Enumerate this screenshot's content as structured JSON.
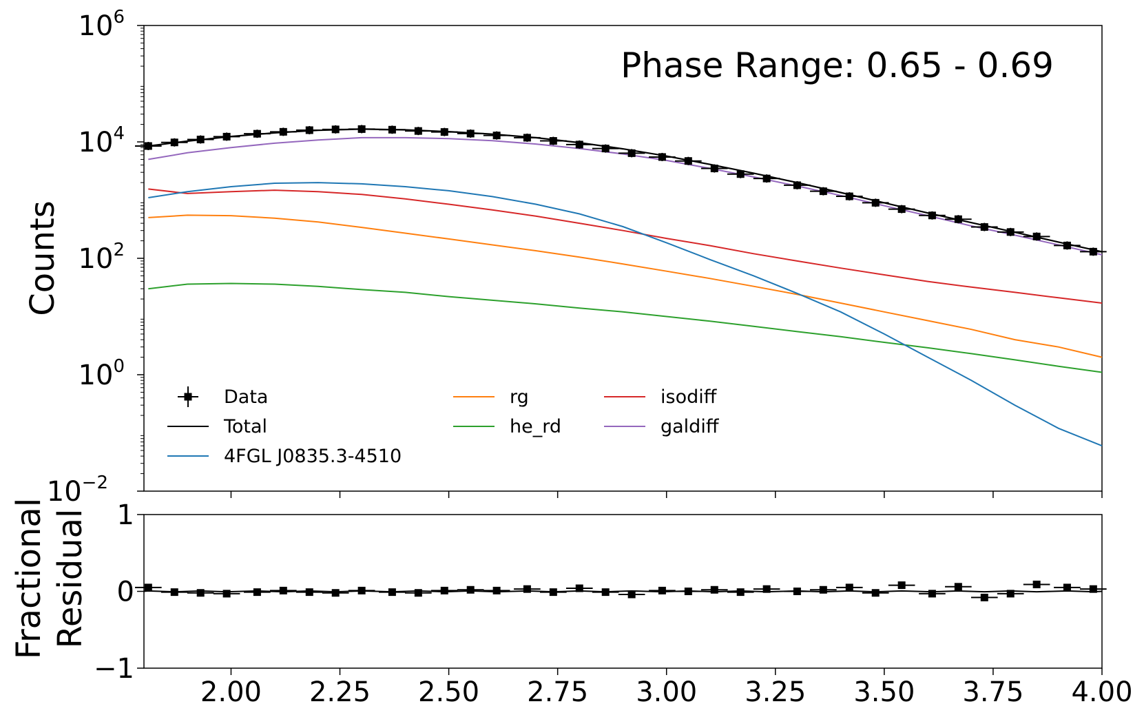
{
  "chart_data": [
    {
      "type": "line",
      "panel": "top",
      "title": "",
      "annotation": "Phase Range: 0.65 - 0.69",
      "xlabel": "",
      "ylabel": "Counts",
      "yscale": "log",
      "xlim": [
        1.8,
        4.0
      ],
      "ylim": [
        0.01,
        1000000
      ],
      "yticks": [
        {
          "base": "10",
          "exp": "6",
          "value": 1000000
        },
        {
          "base": "10",
          "exp": "4",
          "value": 10000
        },
        {
          "base": "10",
          "exp": "2",
          "value": 100
        },
        {
          "base": "10",
          "exp": "0",
          "value": 1
        },
        {
          "base": "10",
          "exp": "−2",
          "value": 0.01
        }
      ],
      "legend_position": "lower-left",
      "series": [
        {
          "name": "Data",
          "key": "data",
          "color": "#000000",
          "kind": "errorbar",
          "x": [
            1.81,
            1.87,
            1.93,
            1.99,
            2.06,
            2.12,
            2.18,
            2.24,
            2.3,
            2.37,
            2.43,
            2.49,
            2.55,
            2.61,
            2.68,
            2.74,
            2.8,
            2.86,
            2.92,
            2.99,
            3.05,
            3.11,
            3.17,
            3.23,
            3.3,
            3.36,
            3.42,
            3.48,
            3.54,
            3.61,
            3.67,
            3.73,
            3.79,
            3.85,
            3.92,
            3.98
          ],
          "y": [
            8500,
            9800,
            11000,
            12300,
            13800,
            14900,
            15900,
            16400,
            16600,
            16200,
            15400,
            14800,
            13900,
            12900,
            11800,
            10400,
            9000,
            7700,
            6400,
            5500,
            4700,
            3500,
            2800,
            2350,
            1800,
            1420,
            1160,
            900,
            700,
            545,
            470,
            345,
            283,
            237,
            166,
            130
          ]
        },
        {
          "name": "Total",
          "key": "total",
          "color": "#000000",
          "x": [
            1.81,
            1.9,
            2.0,
            2.1,
            2.2,
            2.3,
            2.4,
            2.5,
            2.6,
            2.7,
            2.8,
            2.9,
            3.0,
            3.1,
            3.2,
            3.3,
            3.4,
            3.5,
            3.6,
            3.7,
            3.8,
            3.9,
            4.0
          ],
          "y": [
            8500,
            10300,
            12400,
            14300,
            15800,
            16600,
            16100,
            15000,
            13600,
            11800,
            9700,
            7600,
            5700,
            4100,
            2900,
            2000,
            1350,
            900,
            600,
            410,
            280,
            190,
            130
          ]
        },
        {
          "name": "4FGL J0835.3-4510",
          "key": "src",
          "color": "#1f77b4",
          "x": [
            1.81,
            1.9,
            2.0,
            2.1,
            2.2,
            2.3,
            2.4,
            2.5,
            2.6,
            2.7,
            2.8,
            2.9,
            3.0,
            3.1,
            3.2,
            3.3,
            3.4,
            3.5,
            3.6,
            3.7,
            3.8,
            3.9,
            4.0
          ],
          "y": [
            1100,
            1400,
            1700,
            1950,
            2000,
            1900,
            1700,
            1450,
            1150,
            850,
            580,
            350,
            185,
            95,
            50,
            25,
            12,
            5,
            2,
            0.8,
            0.3,
            0.12,
            0.06
          ]
        },
        {
          "name": "rg",
          "key": "rg",
          "color": "#ff7f0e",
          "x": [
            1.81,
            1.9,
            2.0,
            2.1,
            2.2,
            2.3,
            2.4,
            2.5,
            2.6,
            2.7,
            2.8,
            2.9,
            3.0,
            3.1,
            3.2,
            3.3,
            3.4,
            3.5,
            3.6,
            3.7,
            3.8,
            3.9,
            4.0
          ],
          "y": [
            500,
            550,
            540,
            490,
            420,
            340,
            270,
            215,
            170,
            135,
            105,
            80,
            60,
            45,
            33,
            24,
            17,
            12,
            8.5,
            6,
            4,
            3,
            2
          ]
        },
        {
          "name": "he_rd",
          "key": "he_rd",
          "color": "#2ca02c",
          "x": [
            1.81,
            1.9,
            2.0,
            2.1,
            2.2,
            2.3,
            2.4,
            2.5,
            2.6,
            2.7,
            2.8,
            2.9,
            3.0,
            3.1,
            3.2,
            3.3,
            3.4,
            3.5,
            3.6,
            3.7,
            3.8,
            3.9,
            4.0
          ],
          "y": [
            30,
            36,
            37,
            36,
            33,
            29,
            26,
            22,
            19,
            16.5,
            14,
            12,
            10,
            8.3,
            6.8,
            5.5,
            4.5,
            3.6,
            2.9,
            2.3,
            1.8,
            1.4,
            1.1
          ]
        },
        {
          "name": "isodiff",
          "key": "isodiff",
          "color": "#d62728",
          "x": [
            1.81,
            1.9,
            2.0,
            2.1,
            2.2,
            2.3,
            2.4,
            2.5,
            2.6,
            2.7,
            2.8,
            2.9,
            3.0,
            3.1,
            3.2,
            3.3,
            3.4,
            3.5,
            3.6,
            3.7,
            3.8,
            3.9,
            4.0
          ],
          "y": [
            1550,
            1300,
            1400,
            1480,
            1400,
            1250,
            1050,
            850,
            680,
            530,
            400,
            300,
            220,
            165,
            120,
            90,
            68,
            52,
            40,
            32,
            26,
            21,
            17
          ]
        },
        {
          "name": "galdiff",
          "key": "galdiff",
          "color": "#9467bd",
          "x": [
            1.81,
            1.9,
            2.0,
            2.1,
            2.2,
            2.3,
            2.4,
            2.5,
            2.6,
            2.7,
            2.8,
            2.9,
            3.0,
            3.1,
            3.2,
            3.3,
            3.4,
            3.5,
            3.6,
            3.7,
            3.8,
            3.9,
            4.0
          ],
          "y": [
            5000,
            6500,
            8000,
            9500,
            10800,
            11800,
            11800,
            11400,
            10500,
            9200,
            7700,
            6200,
            4800,
            3500,
            2500,
            1750,
            1200,
            800,
            540,
            360,
            250,
            170,
            115
          ]
        }
      ]
    },
    {
      "type": "scatter",
      "panel": "bottom",
      "xlabel": "",
      "ylabel": [
        "Fractional",
        "Residual"
      ],
      "xlim": [
        1.8,
        4.0
      ],
      "ylim": [
        -1,
        1
      ],
      "yticks": [
        "1",
        "0",
        "−1"
      ],
      "yticks_values": [
        1,
        0,
        -1
      ],
      "xticks": [
        "2.00",
        "2.25",
        "2.50",
        "2.75",
        "3.00",
        "3.25",
        "3.50",
        "3.75",
        "4.00"
      ],
      "xticks_values": [
        2.0,
        2.25,
        2.5,
        2.75,
        3.0,
        3.25,
        3.5,
        3.75,
        4.0
      ],
      "zero_line": 0,
      "series": [
        {
          "name": "Residual",
          "color": "#000000",
          "x": [
            1.81,
            1.87,
            1.93,
            1.99,
            2.06,
            2.12,
            2.18,
            2.24,
            2.3,
            2.37,
            2.43,
            2.49,
            2.55,
            2.61,
            2.68,
            2.74,
            2.8,
            2.86,
            2.92,
            2.99,
            3.05,
            3.11,
            3.17,
            3.23,
            3.3,
            3.36,
            3.42,
            3.48,
            3.54,
            3.61,
            3.67,
            3.73,
            3.79,
            3.85,
            3.92,
            3.98
          ],
          "y": [
            0.05,
            -0.01,
            -0.02,
            -0.03,
            -0.01,
            0.01,
            -0.01,
            -0.02,
            0.01,
            -0.01,
            -0.02,
            0.01,
            0.02,
            0.01,
            0.03,
            -0.01,
            0.04,
            -0.01,
            -0.04,
            0.01,
            0.0,
            0.02,
            -0.01,
            0.03,
            0.0,
            0.02,
            0.05,
            -0.02,
            0.08,
            -0.03,
            0.06,
            -0.08,
            -0.03,
            0.09,
            0.05,
            0.03
          ]
        }
      ]
    }
  ]
}
